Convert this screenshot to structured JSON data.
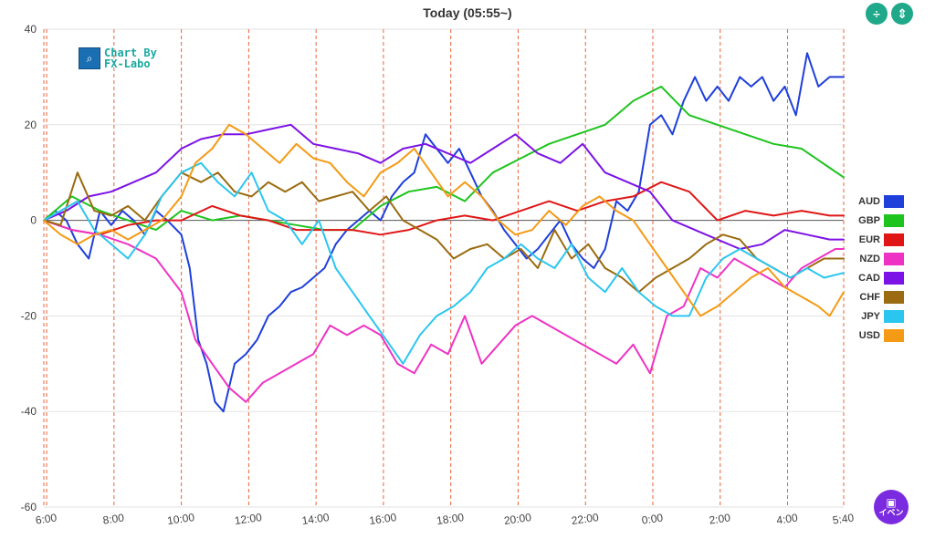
{
  "title": "Today  (05:55~)",
  "logo": {
    "line1": "Chart By",
    "line2": "FX-Labo"
  },
  "controls": {
    "icon1": "split-vertical-icon",
    "icon2": "fit-height-icon"
  },
  "event_button": {
    "icon": "calendar-icon",
    "label": "イベン"
  },
  "chart_data": {
    "type": "line",
    "title": "Today  (05:55~)",
    "xlabel": "",
    "ylabel": "",
    "ylim": [
      -60,
      40
    ],
    "yticks": [
      40,
      20,
      0,
      -20,
      -40,
      -60
    ],
    "xlim": [
      0,
      1425
    ],
    "xtick_positions": [
      5,
      125,
      245,
      365,
      485,
      605,
      725,
      845,
      965,
      1085,
      1205,
      1325,
      1425
    ],
    "xtick_labels": [
      "6:00",
      "8:00",
      "10:00",
      "12:00",
      "14:00",
      "16:00",
      "18:00",
      "20:00",
      "22:00",
      "0:00",
      "2:00",
      "4:00",
      "5:40"
    ],
    "vertical_gridlines": "dashed red at each tick",
    "legend_position": "right",
    "series": [
      {
        "name": "AUD",
        "color": "#1f3fdb",
        "x": [
          0,
          20,
          40,
          60,
          80,
          100,
          120,
          140,
          160,
          180,
          200,
          220,
          245,
          260,
          275,
          290,
          305,
          320,
          340,
          360,
          380,
          400,
          420,
          440,
          460,
          480,
          500,
          520,
          540,
          560,
          580,
          600,
          620,
          640,
          660,
          680,
          700,
          720,
          740,
          760,
          780,
          800,
          820,
          840,
          860,
          880,
          900,
          920,
          940,
          960,
          980,
          1000,
          1020,
          1040,
          1060,
          1080,
          1100,
          1120,
          1140,
          1160,
          1180,
          1200,
          1220,
          1240,
          1260,
          1280,
          1300,
          1320,
          1340,
          1360,
          1380,
          1400,
          1425
        ],
        "y": [
          0,
          2,
          0,
          -5,
          -8,
          2,
          -1,
          2,
          0,
          -3,
          2,
          0,
          -3,
          -10,
          -25,
          -30,
          -38,
          -40,
          -30,
          -28,
          -25,
          -20,
          -18,
          -15,
          -14,
          -12,
          -10,
          -5,
          -2,
          0,
          2,
          0,
          5,
          8,
          10,
          18,
          15,
          12,
          15,
          10,
          5,
          2,
          -2,
          -5,
          -8,
          -6,
          -3,
          0,
          -5,
          -8,
          -10,
          -6,
          4,
          2,
          6,
          20,
          22,
          18,
          25,
          30,
          25,
          28,
          25,
          30,
          28,
          30,
          25,
          28,
          22,
          35,
          28,
          30,
          30
        ]
      },
      {
        "name": "GBP",
        "color": "#1ec41e",
        "x": [
          0,
          50,
          100,
          150,
          200,
          245,
          300,
          350,
          400,
          450,
          500,
          550,
          600,
          650,
          700,
          750,
          800,
          850,
          900,
          950,
          1000,
          1050,
          1100,
          1150,
          1200,
          1250,
          1300,
          1350,
          1400,
          1425
        ],
        "y": [
          0,
          5,
          2,
          0,
          -2,
          2,
          0,
          1,
          0,
          -1,
          -2,
          -2,
          3,
          6,
          7,
          4,
          10,
          13,
          16,
          18,
          20,
          25,
          28,
          22,
          20,
          18,
          16,
          15,
          11,
          9
        ]
      },
      {
        "name": "EUR",
        "color": "#e01616",
        "x": [
          0,
          50,
          100,
          150,
          200,
          245,
          300,
          350,
          400,
          450,
          500,
          550,
          600,
          650,
          700,
          750,
          800,
          850,
          900,
          950,
          1000,
          1050,
          1100,
          1150,
          1200,
          1250,
          1300,
          1350,
          1400,
          1425
        ],
        "y": [
          0,
          -2,
          -3,
          -1,
          0,
          0,
          3,
          1,
          0,
          -2,
          -2,
          -2,
          -3,
          -2,
          0,
          1,
          0,
          2,
          4,
          2,
          4,
          5,
          8,
          6,
          0,
          2,
          1,
          2,
          1,
          1
        ]
      },
      {
        "name": "NZD",
        "color": "#ee33c4",
        "x": [
          0,
          50,
          100,
          150,
          200,
          245,
          270,
          300,
          330,
          360,
          390,
          420,
          450,
          480,
          510,
          540,
          570,
          600,
          630,
          660,
          690,
          720,
          750,
          780,
          810,
          840,
          870,
          900,
          930,
          960,
          990,
          1020,
          1050,
          1080,
          1110,
          1140,
          1170,
          1200,
          1230,
          1260,
          1290,
          1320,
          1350,
          1380,
          1410,
          1425
        ],
        "y": [
          0,
          -2,
          -3,
          -5,
          -8,
          -15,
          -25,
          -30,
          -35,
          -38,
          -34,
          -32,
          -30,
          -28,
          -22,
          -24,
          -22,
          -24,
          -30,
          -32,
          -26,
          -28,
          -20,
          -30,
          -26,
          -22,
          -20,
          -22,
          -24,
          -26,
          -28,
          -30,
          -26,
          -32,
          -20,
          -18,
          -10,
          -12,
          -8,
          -10,
          -12,
          -14,
          -10,
          -8,
          -6,
          -6
        ]
      },
      {
        "name": "CAD",
        "color": "#7b12e6",
        "x": [
          0,
          40,
          80,
          120,
          160,
          200,
          245,
          280,
          320,
          360,
          400,
          440,
          480,
          520,
          560,
          600,
          640,
          680,
          720,
          760,
          800,
          840,
          880,
          920,
          960,
          1000,
          1040,
          1080,
          1120,
          1160,
          1200,
          1240,
          1280,
          1320,
          1360,
          1400,
          1425
        ],
        "y": [
          0,
          2,
          5,
          6,
          8,
          10,
          15,
          17,
          18,
          18,
          19,
          20,
          16,
          15,
          14,
          12,
          15,
          16,
          14,
          12,
          15,
          18,
          14,
          12,
          16,
          10,
          8,
          6,
          0,
          -2,
          -4,
          -6,
          -5,
          -2,
          -3,
          -4,
          -4
        ]
      },
      {
        "name": "CHF",
        "color": "#9a6b10",
        "x": [
          0,
          30,
          60,
          90,
          120,
          150,
          180,
          210,
          245,
          280,
          310,
          340,
          370,
          400,
          430,
          460,
          490,
          520,
          550,
          580,
          610,
          640,
          670,
          700,
          730,
          760,
          790,
          820,
          850,
          880,
          910,
          940,
          970,
          1000,
          1030,
          1060,
          1090,
          1120,
          1150,
          1180,
          1210,
          1240,
          1270,
          1300,
          1330,
          1360,
          1390,
          1425
        ],
        "y": [
          0,
          -1,
          10,
          2,
          1,
          3,
          0,
          5,
          10,
          8,
          10,
          6,
          5,
          8,
          6,
          8,
          4,
          5,
          6,
          2,
          5,
          0,
          -2,
          -4,
          -8,
          -6,
          -5,
          -8,
          -6,
          -10,
          -2,
          -8,
          -5,
          -10,
          -12,
          -15,
          -12,
          -10,
          -8,
          -5,
          -3,
          -4,
          -8,
          -10,
          -12,
          -10,
          -8,
          -8
        ]
      },
      {
        "name": "JPY",
        "color": "#2bc6f0",
        "x": [
          0,
          30,
          60,
          90,
          120,
          150,
          180,
          210,
          245,
          280,
          310,
          340,
          370,
          400,
          430,
          460,
          490,
          520,
          550,
          580,
          610,
          640,
          670,
          700,
          730,
          760,
          790,
          820,
          850,
          880,
          910,
          940,
          970,
          1000,
          1030,
          1060,
          1090,
          1120,
          1150,
          1180,
          1210,
          1240,
          1270,
          1300,
          1330,
          1360,
          1390,
          1425
        ],
        "y": [
          0,
          2,
          4,
          -2,
          -5,
          -8,
          -3,
          5,
          10,
          12,
          8,
          5,
          10,
          2,
          0,
          -5,
          0,
          -10,
          -15,
          -20,
          -25,
          -30,
          -24,
          -20,
          -18,
          -15,
          -10,
          -8,
          -5,
          -8,
          -10,
          -5,
          -12,
          -15,
          -10,
          -15,
          -18,
          -20,
          -20,
          -12,
          -8,
          -6,
          -8,
          -10,
          -12,
          -10,
          -12,
          -11
        ]
      },
      {
        "name": "USD",
        "color": "#f59a14",
        "x": [
          0,
          30,
          60,
          90,
          120,
          150,
          180,
          210,
          245,
          270,
          300,
          330,
          360,
          390,
          420,
          450,
          480,
          510,
          540,
          570,
          600,
          630,
          660,
          690,
          720,
          750,
          780,
          810,
          840,
          870,
          900,
          930,
          960,
          990,
          1020,
          1050,
          1080,
          1110,
          1140,
          1170,
          1200,
          1230,
          1260,
          1290,
          1320,
          1350,
          1380,
          1400,
          1425
        ],
        "y": [
          0,
          -3,
          -5,
          -3,
          -2,
          -4,
          -2,
          0,
          5,
          12,
          15,
          20,
          18,
          15,
          12,
          16,
          13,
          12,
          8,
          5,
          10,
          12,
          15,
          10,
          5,
          8,
          5,
          0,
          -3,
          -2,
          2,
          -1,
          3,
          5,
          2,
          0,
          -5,
          -10,
          -15,
          -20,
          -18,
          -15,
          -12,
          -10,
          -14,
          -16,
          -18,
          -20,
          -15
        ]
      }
    ]
  }
}
